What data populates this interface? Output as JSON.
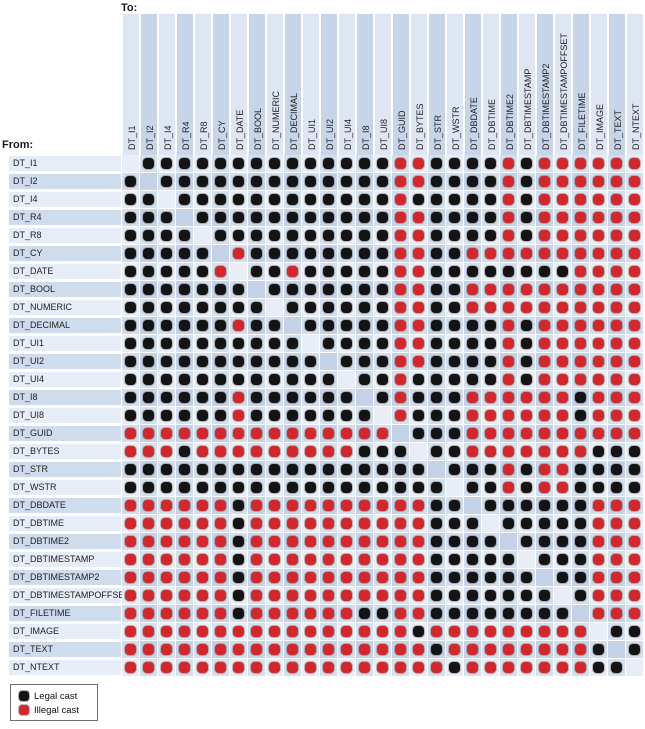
{
  "axis": {
    "to_label": "To:",
    "from_label": "From:"
  },
  "legend": {
    "items": [
      {
        "label": "Legal cast",
        "color": "#141414"
      },
      {
        "label": "Illegal cast",
        "color": "#d5262b"
      }
    ]
  },
  "chart_data": {
    "type": "heatmap",
    "x_label": "To:",
    "y_label": "From:",
    "legend_position": "bottom-left",
    "grid": true,
    "encoding": {
      "B": "Legal cast",
      "R": "Illegal cast",
      ".": "same type (no dot)"
    },
    "colors": {
      "legal": "#141414",
      "illegal": "#d5262b"
    },
    "to_types": [
      "DT_I1",
      "DT_I2",
      "DT_I4",
      "DT_R4",
      "DT_R8",
      "DT_CY",
      "DT_DATE",
      "DT_BOOL",
      "DT_NUMERIC",
      "DT_DECIMAL",
      "DT_UI1",
      "DT_UI2",
      "DT_UI4",
      "DT_I8",
      "DT_UI8",
      "DT_GUID",
      "DT_BYTES",
      "DT_STR",
      "DT_WSTR",
      "DT_DBDATE",
      "DT_DBTIME",
      "DT_DBTIME2",
      "DT_DBTIMESTAMP",
      "DT_DBTIMESTAMP2",
      "DT_DBTIMESTAMPOFFSET",
      "DT_FILETIME",
      "DT_IMAGE",
      "DT_TEXT",
      "DT_NTEXT"
    ],
    "from_types": [
      "DT_I1",
      "DT_I2",
      "DT_I4",
      "DT_R4",
      "DT_R8",
      "DT_CY",
      "DT_DATE",
      "DT_BOOL",
      "DT_NUMERIC",
      "DT_DECIMAL",
      "DT_UI1",
      "DT_UI2",
      "DT_UI4",
      "DT_I8",
      "DT_UI8",
      "DT_GUID",
      "DT_BYTES",
      "DT_STR",
      "DT_WSTR",
      "DT_DBDATE",
      "DT_DBTIME",
      "DT_DBTIME2",
      "DT_DBTIMESTAMP",
      "DT_DBTIMESTAMP2",
      "DT_DBTIMESTAMPOFFSET",
      "DT_FILETIME",
      "DT_IMAGE",
      "DT_TEXT",
      "DT_NTEXT"
    ],
    "matrix": [
      ".BBBBBBBBBBBBBBRRBBBBRBRRRRRR",
      "B.BBBBBBBBBBBBBRRBBBBRBRRRRRR",
      "BB.BBBBBBBBBBBBRBBBBBRBRRRRRR",
      "BBB.BBBBBBBBBBBRRBBBBRBRRRRRR",
      "BBBB.BBBBBBBBBBRRBBBBRBRRRRRR",
      "BBBBB.RBBBBBBBBRRBBRRRRRRRRRR",
      "BBBBBR.BBRBBBBBRRBBBBBBBBRRRR",
      "BBBBBBB.BBBBBBBRRBBRRRRRRRRRR",
      "BBBBBBBB.BBBBBBRRBBRRRRRRRRRR",
      "BBBBBBRBB.BBBBBRRBBBBRBRRRRRR",
      "BBBBBBBBBB.BBBBRRBBBBRBRRRRRR",
      "BBBBBBBBBBB.BBBRRBBBBRBRRRRRR",
      "BBBBBBBBBBBB.BBRBBBBBRBRRRRRR",
      "BBBBBBRBBBBBB.BRBBBRRRRRRBRRR",
      "BBBBBBRBBBBBBB.RBBBRRRRRRBRRR",
      "RRRRRRRRRRRRRRR.BBBRRRRRRRRRR",
      "RRRBRRRRRRRRRBBB.BBRRRRRRRBBB",
      "BBBBBBBBBBBBBBBBB.BBBRBRRBBBB",
      "BBBBBBBBBBBBBBBBBB.BBRBRRBBBB",
      "RRRRRRBRRRRRRRRRRBB.BBBBBBRRR",
      "RRRRRRBRRRRRRRRRRBBB.BBBBBRRR",
      "RRRRRRBRRRRRRRRRRBBBB.BBBBRRR",
      "RRRRRRBRRRRRRRRRRBBBBB.BBBRRR",
      "RRRRRRBRRRRRRRRRRBBBBBB.BBRRR",
      "RRRRRRBRRRRRRRRRRBBBBBBB.BRRR",
      "RRRRRRBRRRRRRBBRRBBBBBBBB.RRR",
      "RRRRRRRRRRRRRRRRBRRRRRRRRR.BB",
      "RRRRRRRRRRRRRRRRRBRRRRRRRRB.B",
      "RRRRRRRRRRRRRRRRRRBRRRRRRRBB."
    ]
  }
}
